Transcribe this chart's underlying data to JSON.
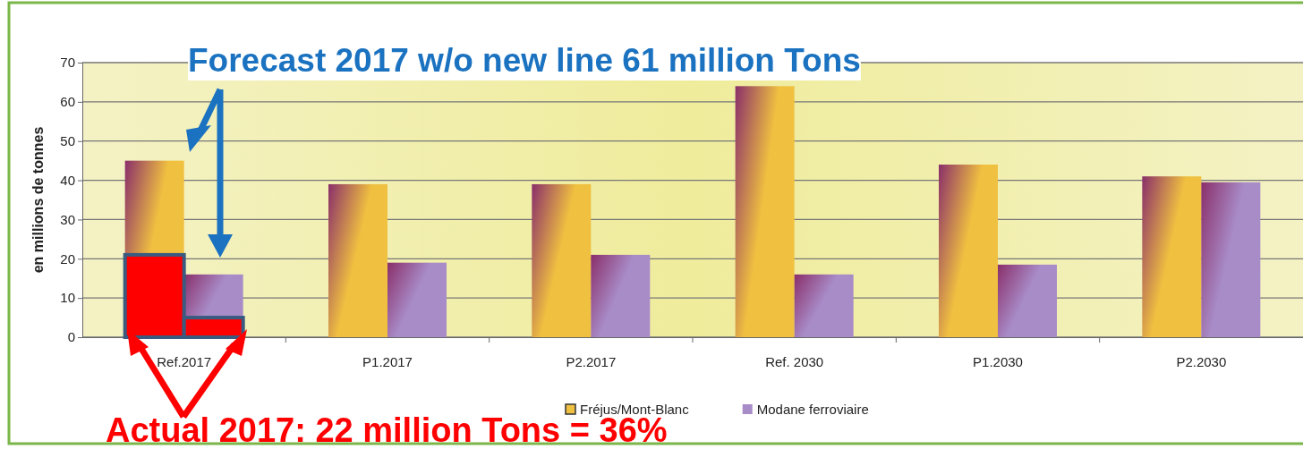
{
  "chart_data": {
    "type": "bar",
    "ylabel": "en millions de tonnes",
    "categories": [
      "Ref.2017",
      "P1.2017",
      "P2.2017",
      "Ref. 2030",
      "P1.2030",
      "P2.2030"
    ],
    "series": [
      {
        "name": "Fréjus/Mont-Blanc",
        "color": "#f0c040",
        "values": [
          45,
          39,
          39,
          64,
          44,
          41
        ]
      },
      {
        "name": "Modane ferroviaire",
        "color": "#a88cc8",
        "values": [
          16,
          19,
          21,
          16,
          18.5,
          39.5
        ]
      },
      {
        "color": "#ff0000",
        "values": [
          21,
          null,
          null,
          null,
          null,
          null
        ]
      },
      {
        "color": "#ff0000",
        "values": [
          5,
          null,
          null,
          null,
          null,
          null
        ]
      }
    ],
    "ylim": [
      0,
      70
    ],
    "yticks": [
      0,
      10,
      20,
      30,
      40,
      50,
      60,
      70
    ],
    "grid": "y",
    "legend": "bottom",
    "annotations": [
      "Forecast 2017 w/o new line 61 million Tons",
      "Actual 2017: 22 million Tons = 36%"
    ]
  }
}
